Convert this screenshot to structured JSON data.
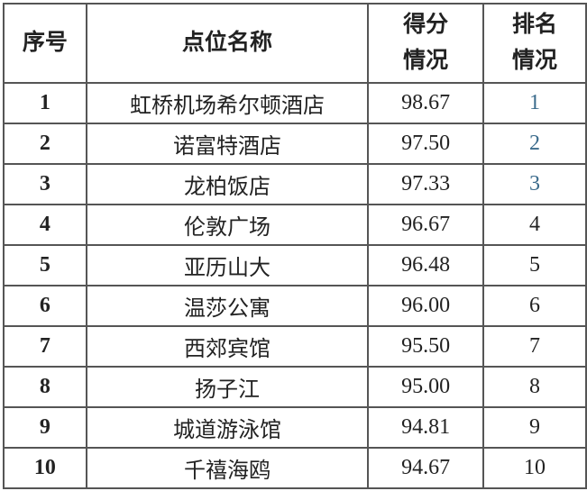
{
  "table": {
    "headers": [
      "序号",
      "点位名称",
      "得分情况",
      "排名情况"
    ],
    "header_lines": [
      [
        "序号"
      ],
      [
        "点位名称"
      ],
      [
        "得分",
        "情况"
      ],
      [
        "排名",
        "情况"
      ]
    ],
    "rows": [
      {
        "no": "1",
        "name": "虹桥机场希尔顿酒店",
        "score": "98.67",
        "rank": "1"
      },
      {
        "no": "2",
        "name": "诺富特酒店",
        "score": "97.50",
        "rank": "2"
      },
      {
        "no": "3",
        "name": "龙柏饭店",
        "score": "97.33",
        "rank": "3"
      },
      {
        "no": "4",
        "name": "伦敦广场",
        "score": "96.67",
        "rank": "4"
      },
      {
        "no": "5",
        "name": "亚历山大",
        "score": "96.48",
        "rank": "5"
      },
      {
        "no": "6",
        "name": "温莎公寓",
        "score": "96.00",
        "rank": "6"
      },
      {
        "no": "7",
        "name": "西郊宾馆",
        "score": "95.50",
        "rank": "7"
      },
      {
        "no": "8",
        "name": "扬子江",
        "score": "95.00",
        "rank": "8"
      },
      {
        "no": "9",
        "name": "城道游泳馆",
        "score": "94.81",
        "rank": "9"
      },
      {
        "no": "10",
        "name": "千禧海鸥",
        "score": "94.67",
        "rank": "10"
      }
    ],
    "top_rank_color": "#3b6b8c"
  }
}
